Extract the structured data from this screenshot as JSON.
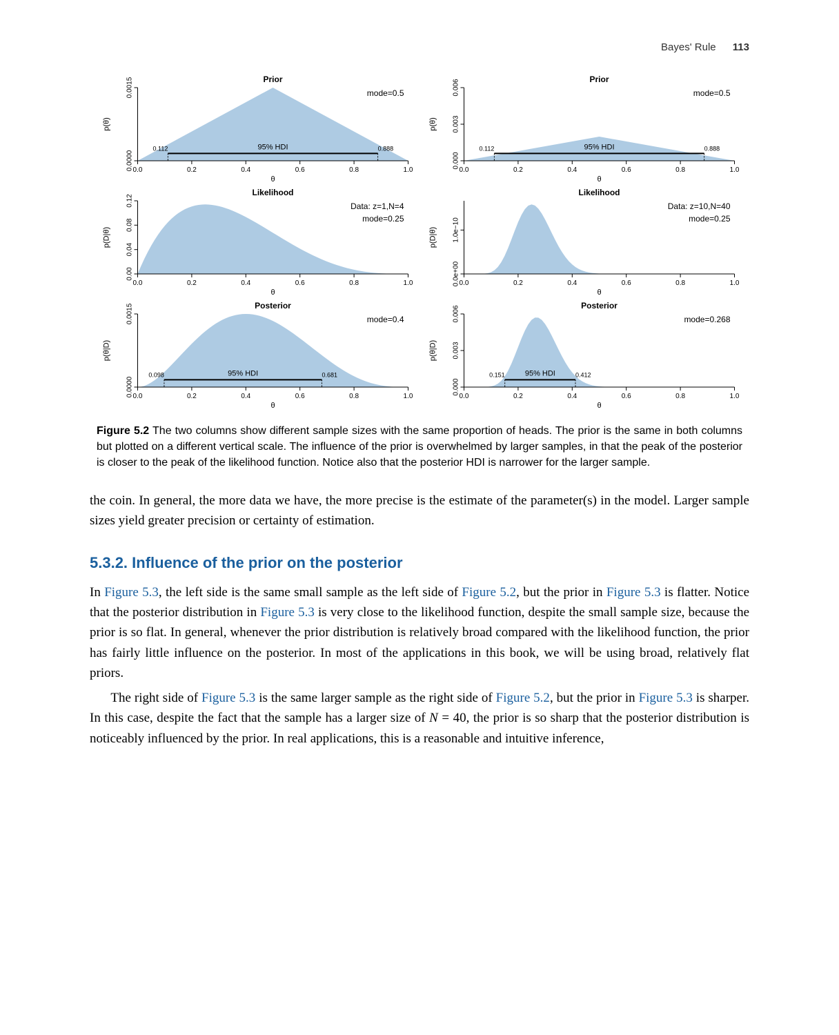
{
  "page": {
    "running_head": "Bayes' Rule",
    "page_number": "113"
  },
  "figure": {
    "label": "Figure 5.2",
    "caption": "The two columns show different sample sizes with the same proportion of heads. The prior is the same in both columns but plotted on a different vertical scale. The influence of the prior is overwhelmed by larger samples, in that the peak of the posterior is closer to the peak of the likelihood function. Notice also that the posterior HDI is narrower for the larger sample.",
    "fill_color": "#aecbe3",
    "axis_color": "#000000",
    "background": "#ffffff",
    "xticks": [
      0.0,
      0.2,
      0.4,
      0.6,
      0.8,
      1.0
    ],
    "panels": [
      {
        "title": "Prior",
        "ylab": "p(θ)",
        "xlab": "θ",
        "yticks_labels": [
          "0.0000",
          "0.0015"
        ],
        "yticks_pos": [
          0,
          1
        ],
        "mode_label": "mode=0.5",
        "hdi_label": "95% HDI",
        "hdi_lo": 0.112,
        "hdi_hi": 0.888,
        "hdi_lo_label": "0.112",
        "hdi_hi_label": "0.888",
        "shape": "triangle_centered"
      },
      {
        "title": "Prior",
        "ylab": "p(θ)",
        "xlab": "θ",
        "yticks_labels": [
          "0.000",
          "0.003",
          "0.006"
        ],
        "yticks_pos": [
          0,
          0.5,
          1
        ],
        "mode_label": "mode=0.5",
        "hdi_label": "95% HDI",
        "hdi_lo": 0.112,
        "hdi_hi": 0.888,
        "hdi_lo_label": "0.112",
        "hdi_hi_label": "0.888",
        "shape": "triangle_centered_low"
      },
      {
        "title": "Likelihood",
        "ylab": "p(D|θ)",
        "xlab": "θ",
        "yticks_labels": [
          "0.00",
          "0.04",
          "0.08",
          "0.12"
        ],
        "yticks_pos": [
          0,
          0.333,
          0.667,
          1
        ],
        "data_label": "Data: z=1,N=4",
        "mode_label": "mode=0.25",
        "shape": "beta_wide",
        "peak_x": 0.25
      },
      {
        "title": "Likelihood",
        "ylab": "p(D|θ)",
        "xlab": "θ",
        "yticks_labels": [
          "0.0e+00",
          "1.0e−10"
        ],
        "yticks_pos": [
          0,
          0.6
        ],
        "data_label": "Data: z=10,N=40",
        "mode_label": "mode=0.25",
        "shape": "beta_narrow",
        "peak_x": 0.25
      },
      {
        "title": "Posterior",
        "ylab": "p(θ|D)",
        "xlab": "θ",
        "yticks_labels": [
          "0.0000",
          "0.0015"
        ],
        "yticks_pos": [
          0,
          1
        ],
        "mode_label": "mode=0.4",
        "hdi_label": "95% HDI",
        "hdi_lo": 0.098,
        "hdi_hi": 0.681,
        "hdi_lo_label": "0.098",
        "hdi_hi_label": "0.681",
        "shape": "beta_post_wide",
        "peak_x": 0.4
      },
      {
        "title": "Posterior",
        "ylab": "p(θ|D)",
        "xlab": "θ",
        "yticks_labels": [
          "0.000",
          "0.003",
          "0.006"
        ],
        "yticks_pos": [
          0,
          0.5,
          1
        ],
        "mode_label": "mode=0.268",
        "hdi_label": "95% HDI",
        "hdi_lo": 0.151,
        "hdi_hi": 0.412,
        "hdi_lo_label": "0.151",
        "hdi_hi_label": "0.412",
        "shape": "beta_post_narrow",
        "peak_x": 0.268
      }
    ]
  },
  "body": {
    "para1": "the coin. In general, the more data we have, the more precise is the estimate of the parameter(s) in the model. Larger sample sizes yield greater precision or certainty of estimation.",
    "section_heading": "5.3.2. Influence of the prior on the posterior",
    "para2_parts": [
      {
        "t": "In "
      },
      {
        "t": "Figure 5.3",
        "link": true
      },
      {
        "t": ", the left side is the same small sample as the left side of "
      },
      {
        "t": "Figure 5.2",
        "link": true
      },
      {
        "t": ", but the prior in "
      },
      {
        "t": "Figure 5.3",
        "link": true
      },
      {
        "t": " is flatter. Notice that the posterior distribution in "
      },
      {
        "t": "Figure 5.3",
        "link": true
      },
      {
        "t": " is very close to the likelihood function, despite the small sample size, because the prior is so flat. In general, whenever the prior distribution is relatively broad compared with the likelihood function, the prior has fairly little influence on the posterior. In most of the applications in this book, we will be using broad, relatively flat priors."
      }
    ],
    "para3_parts": [
      {
        "t": "The right side of "
      },
      {
        "t": "Figure 5.3",
        "link": true
      },
      {
        "t": " is the same larger sample as the right side of "
      },
      {
        "t": "Figure 5.2",
        "link": true
      },
      {
        "t": ", but the prior in "
      },
      {
        "t": "Figure 5.3",
        "link": true
      },
      {
        "t": " is sharper. In this case, despite the fact that the sample has a larger size of "
      },
      {
        "t": "N",
        "ital": true
      },
      {
        "t": " = 40, the prior is so sharp that the posterior distribution is noticeably influenced by the prior. In real applications, this is a reasonable and intuitive inference,"
      }
    ]
  }
}
